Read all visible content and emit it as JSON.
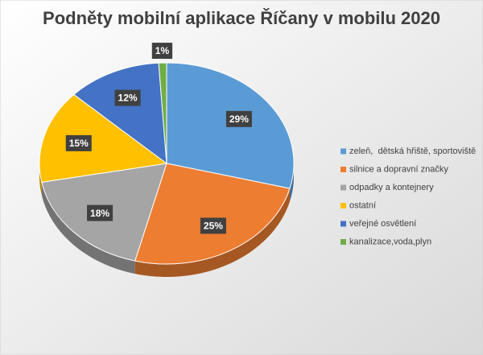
{
  "chart_data": {
    "type": "pie",
    "title": "Podněty mobilní aplikace Říčany v mobilu 2020",
    "categories": [
      "zeleň,  dětská hřiště, sportoviště",
      "silnice a dopravní značky",
      "odpadky a kontejnery",
      "ostatní",
      "veřejné osvětlení",
      "kanalizace,voda,plyn"
    ],
    "values": [
      29,
      25,
      18,
      15,
      12,
      1
    ],
    "value_labels": [
      "29%",
      "25%",
      "18%",
      "15%",
      "12%",
      "1%"
    ],
    "colors": [
      "#5b9bd5",
      "#ed7d31",
      "#a5a5a5",
      "#ffc000",
      "#4472c4",
      "#70ad47"
    ],
    "legend": "right"
  }
}
